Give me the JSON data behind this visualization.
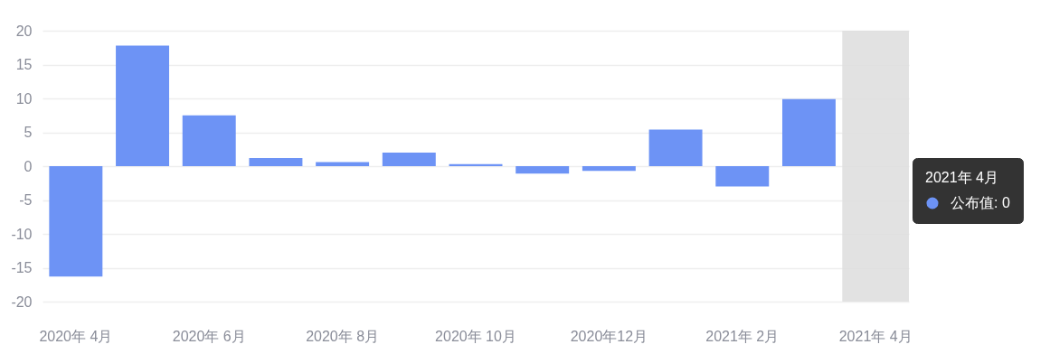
{
  "chart_data": {
    "type": "bar",
    "categories": [
      "2020年 4月",
      null,
      "2020年 6月",
      null,
      "2020年 8月",
      null,
      "2020年 10月",
      null,
      "2020年12月",
      null,
      "2021年 2月",
      null,
      "2021年 4月"
    ],
    "series": [
      {
        "name": "公布值: 0",
        "color": "#6d93f5",
        "values": [
          -16.3,
          17.8,
          7.5,
          1.2,
          0.6,
          2.0,
          0.3,
          -1.1,
          -0.7,
          5.4,
          -3.0,
          9.9,
          0
        ]
      }
    ],
    "legend_title": "2021年 4月",
    "legend": "right",
    "ylim": [
      -20,
      20
    ],
    "yticks": [
      -20,
      -15,
      -10,
      -5,
      0,
      5,
      10,
      15,
      20
    ],
    "grid": "y",
    "bands": [
      {
        "axis": "x",
        "from": "2021年 4月",
        "to": "2021年 4月",
        "color": "#dedede"
      }
    ]
  }
}
